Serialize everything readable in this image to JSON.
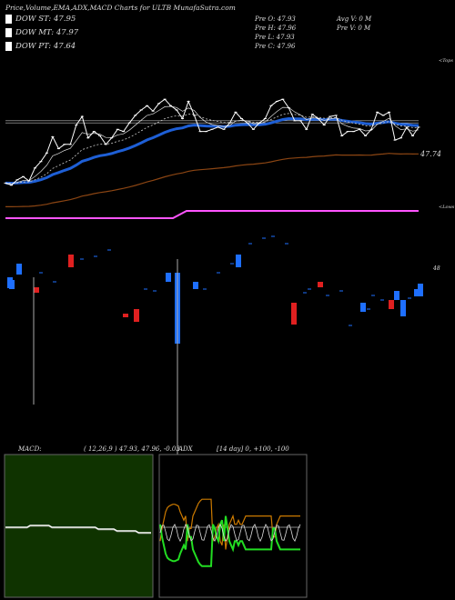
{
  "header": {
    "title": "Price,Volume,EMA,ADX,MACD Charts for ULTB MunafaSutra.com"
  },
  "legend": [
    {
      "label": "DOW ST: 47.95",
      "color": "#ffffff"
    },
    {
      "label": "DOW MT: 47.97",
      "color": "#ffffff"
    },
    {
      "label": "DOW PT: 47.64",
      "color": "#ff55ff"
    }
  ],
  "ohlc": {
    "pre_o": "Pre   O: 47.93",
    "pre_h": "Pre   H: 47.96",
    "pre_l": "Pre   L: 47.93",
    "pre_c": "Pre   C: 47.96",
    "avg_v": "Avg V: 0   M",
    "pre_v": "Pre   V: 0   M"
  },
  "labels": {
    "tops": "<Tops",
    "lows": "<Lows",
    "price_tag": "47.74",
    "vol_tag": "48"
  },
  "macd": {
    "title": "MACD:",
    "params": "( 12,26,9 ) 47.93, 47.96, -0.03"
  },
  "adx": {
    "title": "ADX",
    "params": "[14  day] 0, +100, -100"
  },
  "colors": {
    "ema_short": "#1e5fd6",
    "ema_long": "#8b4513",
    "dow_pt": "#ff55ff",
    "up_bar": "#1e6fff",
    "down_bar": "#e02020",
    "macd_bg": "#0f3300",
    "adx_plus": "#22dd22",
    "adx_minus": "#cc7a00"
  },
  "chart_data": {
    "type": "line",
    "title": "Price,Volume,EMA,ADX,MACD Charts for ULTB MunafaSutra.com",
    "series": [
      {
        "name": "close",
        "values": [
          47.3,
          47.28,
          47.33,
          47.36,
          47.32,
          47.44,
          47.5,
          47.58,
          47.73,
          47.62,
          47.66,
          47.66,
          47.84,
          47.92,
          47.72,
          47.78,
          47.74,
          47.66,
          47.72,
          47.8,
          47.78,
          47.86,
          47.93,
          47.98,
          48.02,
          47.97,
          48.04,
          48.08,
          48.02,
          47.98,
          47.9,
          48.06,
          47.93,
          47.78,
          47.78,
          47.8,
          47.82,
          47.8,
          47.86,
          47.96,
          47.9,
          47.86,
          47.8,
          47.86,
          47.9,
          48.02,
          48.06,
          48.08,
          48.0,
          47.88,
          47.88,
          47.8,
          47.94,
          47.9,
          47.84,
          47.92,
          47.93,
          47.74,
          47.78,
          47.78,
          47.8,
          47.74,
          47.8,
          47.96,
          47.93,
          47.96,
          47.7,
          47.72,
          47.82,
          47.74,
          47.82
        ]
      }
    ],
    "ylim": [
      47.1,
      48.2
    ],
    "macd_line": [
      0.0,
      0.0,
      0.0,
      0.0,
      0.0,
      0.0,
      0.0,
      0.0,
      0.01,
      0.01,
      0.01,
      0.01,
      0.01,
      0.01,
      0.01,
      0.0,
      0.0,
      0.0,
      0.0,
      0.0,
      0.0,
      0.0,
      0.0,
      0.0,
      0.0,
      0.0,
      0.0,
      0.0,
      0.0,
      0.0,
      -0.01,
      -0.01,
      -0.01,
      -0.01,
      -0.01,
      -0.01,
      -0.02,
      -0.02,
      -0.02,
      -0.02,
      -0.02,
      -0.02,
      -0.02,
      -0.03,
      -0.03,
      -0.03,
      -0.03,
      -0.03
    ],
    "adx_plus": [
      60,
      45,
      35,
      25,
      20,
      18,
      17,
      16,
      16,
      17,
      18,
      25,
      30,
      35,
      30,
      60,
      45,
      45,
      30,
      25,
      20,
      15,
      12,
      10,
      10,
      10,
      10,
      10,
      10,
      60,
      55,
      45,
      40,
      60,
      65,
      40,
      70,
      55,
      40,
      35,
      30,
      40,
      40,
      35,
      40,
      40,
      35,
      30,
      30,
      30,
      30,
      30,
      30,
      30,
      30,
      30,
      30,
      30,
      30,
      30,
      30,
      30,
      55,
      55,
      40,
      35,
      30,
      30,
      30,
      30,
      30,
      30,
      30,
      30,
      30,
      30,
      30,
      30
    ],
    "adx_minus": [
      40,
      55,
      65,
      75,
      80,
      82,
      83,
      84,
      84,
      83,
      82,
      75,
      70,
      65,
      70,
      40,
      55,
      55,
      70,
      75,
      80,
      85,
      88,
      90,
      90,
      90,
      90,
      90,
      90,
      40,
      45,
      55,
      60,
      40,
      35,
      60,
      30,
      45,
      60,
      65,
      70,
      60,
      60,
      65,
      60,
      60,
      65,
      70,
      70,
      70,
      70,
      70,
      70,
      70,
      70,
      70,
      70,
      70,
      70,
      70,
      70,
      70,
      45,
      45,
      60,
      65,
      70,
      70,
      70,
      70,
      70,
      70,
      70,
      70,
      70,
      70,
      70,
      70
    ]
  }
}
